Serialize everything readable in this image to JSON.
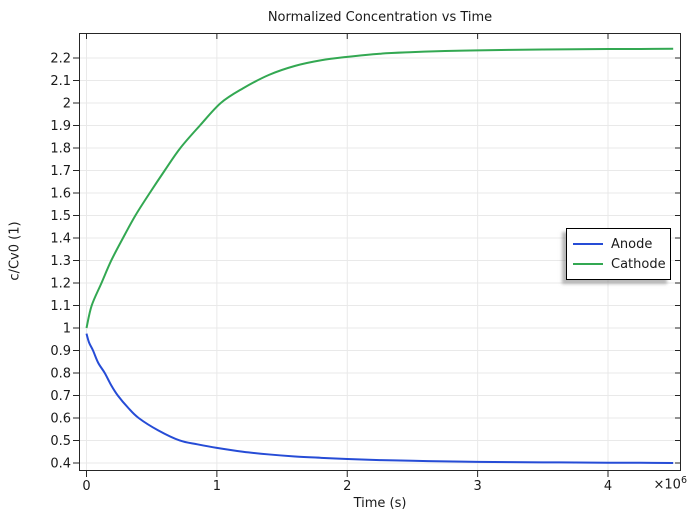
{
  "window": {
    "background": "#ffffff"
  },
  "chart_data": {
    "type": "line",
    "title": "Normalized Concentration vs Time",
    "xlabel": "Time (s)",
    "ylabel": "c/Cv0 (1)",
    "x_exponent": {
      "base": "×10",
      "sup": "6"
    },
    "grid": true,
    "xlim": [
      -57500,
      4560000
    ],
    "ylim": [
      0.3644,
      2.3111
    ],
    "x_ticks": [
      0,
      1000000,
      2000000,
      3000000,
      4000000
    ],
    "x_tick_labels": [
      "0",
      "1",
      "2",
      "3",
      "4"
    ],
    "y_ticks": [
      0.4,
      0.5,
      0.6,
      0.7,
      0.8,
      0.9,
      1,
      1.1,
      1.2,
      1.3,
      1.4,
      1.5,
      1.6,
      1.7,
      1.8,
      1.9,
      2,
      2.1,
      2.2
    ],
    "y_tick_labels": [
      "0.4",
      "0.5",
      "0.6",
      "0.7",
      "0.8",
      "0.9",
      "1",
      "1.1",
      "1.2",
      "1.3",
      "1.4",
      "1.5",
      "1.6",
      "1.7",
      "1.8",
      "1.9",
      "2",
      "2.1",
      "2.2"
    ],
    "legend": {
      "position": "right-middle",
      "border_color": "#000000",
      "background": "#ffffff"
    },
    "series": [
      {
        "name": "Anode",
        "color": "#264CD6",
        "x": [
          0,
          20000,
          50000,
          90000,
          140000,
          190000,
          240000,
          320000,
          400000,
          550000,
          715000,
          850000,
          1000000,
          1200000,
          1400000,
          1600000,
          1800000,
          2000000,
          2250000,
          2500000,
          2750000,
          3000000,
          3250000,
          3500000,
          3750000,
          4000000,
          4250000,
          4500000
        ],
        "y": [
          0.975,
          0.935,
          0.9,
          0.845,
          0.8,
          0.745,
          0.7,
          0.645,
          0.6,
          0.545,
          0.5,
          0.483,
          0.467,
          0.45,
          0.438,
          0.429,
          0.423,
          0.418,
          0.413,
          0.41,
          0.407,
          0.405,
          0.404,
          0.403,
          0.402,
          0.401,
          0.401,
          0.4
        ]
      },
      {
        "name": "Cathode",
        "color": "#33A852",
        "x": [
          0,
          40000,
          115000,
          190000,
          280000,
          375000,
          485000,
          600000,
          720000,
          870000,
          1030000,
          1200000,
          1400000,
          1600000,
          1800000,
          2000000,
          2250000,
          2500000,
          2750000,
          3000000,
          3250000,
          3500000,
          3750000,
          4000000,
          4250000,
          4500000
        ],
        "y": [
          1.0,
          1.1,
          1.2,
          1.3,
          1.4,
          1.5,
          1.6,
          1.7,
          1.8,
          1.9,
          2.0,
          2.065,
          2.125,
          2.165,
          2.19,
          2.205,
          2.219,
          2.226,
          2.231,
          2.234,
          2.236,
          2.238,
          2.239,
          2.24,
          2.24,
          2.241
        ]
      }
    ],
    "colors": {
      "frame": "#262626",
      "grid": "#e9e9e9",
      "tick": "#262626",
      "text": "#1a1a1a"
    }
  }
}
